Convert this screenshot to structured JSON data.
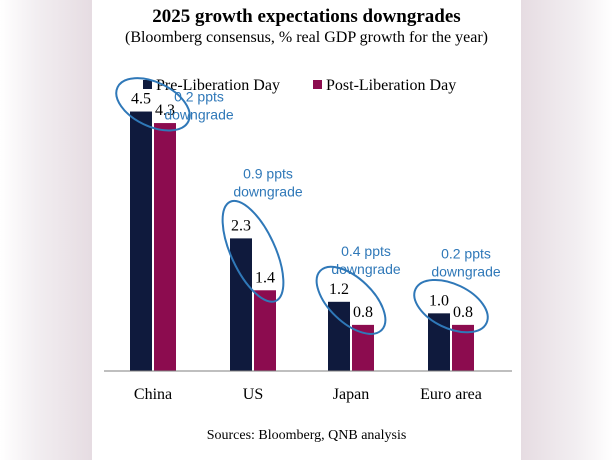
{
  "chart_data": {
    "type": "bar",
    "title": "2025 growth expectations downgrades",
    "subtitle": "(Bloomberg consensus, % real GDP growth for the year)",
    "categories": [
      "China",
      "US",
      "Japan",
      "Euro area"
    ],
    "series": [
      {
        "name": "Pre-Liberation Day",
        "values": [
          4.5,
          2.3,
          1.2,
          1.0
        ],
        "labels": [
          "4.5",
          "2.3",
          "1.2",
          "1.0"
        ],
        "color": "#0f1a3d"
      },
      {
        "name": "Post-Liberation Day",
        "values": [
          4.3,
          1.4,
          0.8,
          0.8
        ],
        "labels": [
          "4.3",
          "1.4",
          "0.8",
          "0.8"
        ],
        "color": "#8c0c4f"
      }
    ],
    "annotations": [
      {
        "category": "China",
        "line1": "0.2 ppts",
        "line2": "downgrade"
      },
      {
        "category": "US",
        "line1": "0.9 ppts",
        "line2": "downgrade"
      },
      {
        "category": "Japan",
        "line1": "0.4 ppts",
        "line2": "downgrade"
      },
      {
        "category": "Euro area",
        "line1": "0.2 ppts",
        "line2": "downgrade"
      }
    ],
    "ylim": [
      0,
      4.7
    ],
    "xlabel": "",
    "ylabel": "",
    "grid": false,
    "legend_position": "top-center",
    "source": "Sources: Bloomberg, QNB analysis",
    "annotation_color": "#2f78b8"
  }
}
